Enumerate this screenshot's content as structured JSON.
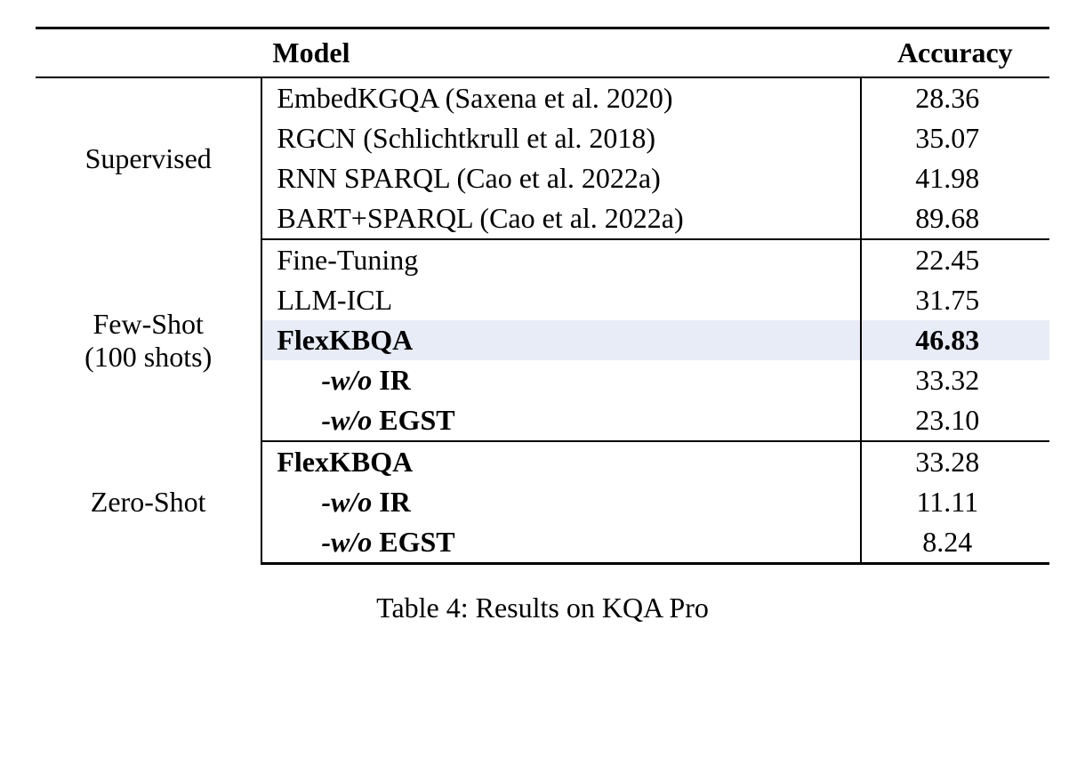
{
  "table": {
    "headers": {
      "group": "",
      "model": "Model",
      "accuracy": "Accuracy"
    },
    "sections": [
      {
        "label": "Supervised",
        "rows": [
          {
            "model": "EmbedKGQA (Saxena et al. 2020)",
            "accuracy": "28.36",
            "bold": false,
            "italic": false,
            "indent": false,
            "highlight": false
          },
          {
            "model": "RGCN (Schlichtkrull et al. 2018)",
            "accuracy": "35.07",
            "bold": false,
            "italic": false,
            "indent": false,
            "highlight": false
          },
          {
            "model": "RNN SPARQL (Cao et al. 2022a)",
            "accuracy": "41.98",
            "bold": false,
            "italic": false,
            "indent": false,
            "highlight": false
          },
          {
            "model": "BART+SPARQL (Cao et al. 2022a)",
            "accuracy": "89.68",
            "bold": false,
            "italic": false,
            "indent": false,
            "highlight": false
          }
        ]
      },
      {
        "label": "Few-Shot\n(100 shots)",
        "rows": [
          {
            "model": "Fine-Tuning",
            "accuracy": "22.45",
            "bold": false,
            "italic": false,
            "indent": false,
            "highlight": false
          },
          {
            "model": "LLM-ICL",
            "accuracy": "31.75",
            "bold": false,
            "italic": false,
            "indent": false,
            "highlight": false
          },
          {
            "model": "FlexKBQA",
            "accuracy": "46.83",
            "bold": true,
            "italic": false,
            "indent": false,
            "highlight": true
          },
          {
            "model_prefix": "-w/o",
            "model_suffix": " IR",
            "accuracy": "33.32",
            "bold": true,
            "italic": true,
            "indent": true,
            "highlight": false
          },
          {
            "model_prefix": "-w/o",
            "model_suffix": " EGST",
            "accuracy": "23.10",
            "bold": true,
            "italic": true,
            "indent": true,
            "highlight": false
          }
        ]
      },
      {
        "label": "Zero-Shot",
        "rows": [
          {
            "model": "FlexKBQA",
            "accuracy": "33.28",
            "bold": true,
            "italic": false,
            "indent": false,
            "highlight": false
          },
          {
            "model_prefix": "-w/o",
            "model_suffix": " IR",
            "accuracy": "11.11",
            "bold": true,
            "italic": true,
            "indent": true,
            "highlight": false
          },
          {
            "model_prefix": "-w/o",
            "model_suffix": " EGST",
            "accuracy": "8.24",
            "bold": true,
            "italic": true,
            "indent": true,
            "highlight": false
          }
        ]
      }
    ]
  },
  "caption": "Table 4: Results on KQA Pro",
  "styling": {
    "font_family": "Times New Roman",
    "base_fontsize": 32,
    "highlight_color": "#e8ecf7",
    "background_color": "#ffffff",
    "border_color": "#000000",
    "top_rule_width": 3,
    "mid_rule_width": 2,
    "bottom_rule_width": 3
  }
}
